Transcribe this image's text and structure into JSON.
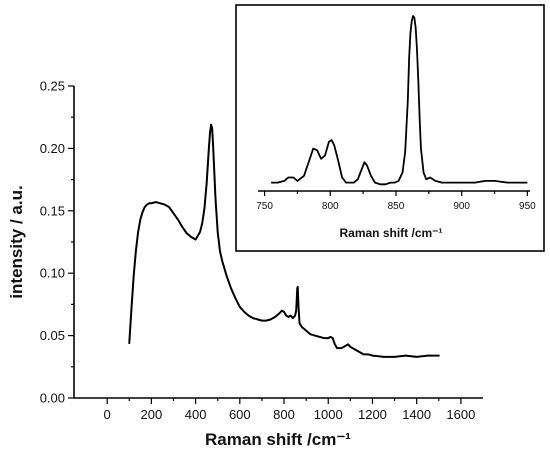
{
  "chart_data": [
    {
      "type": "line",
      "xlabel": "Raman shift /cm⁻¹",
      "ylabel": "intensity / a.u.",
      "xlim": [
        -150,
        1700
      ],
      "ylim": [
        0.0,
        0.25
      ],
      "x_ticks": [
        0,
        200,
        400,
        600,
        800,
        1000,
        1200,
        1400,
        1600
      ],
      "y_ticks": [
        0.0,
        0.05,
        0.1,
        0.15,
        0.2,
        0.25
      ],
      "x_tick_labels": [
        "0",
        "200",
        "400",
        "600",
        "800",
        "1000",
        "1200",
        "1400",
        "1600"
      ],
      "y_tick_labels": [
        "0.00",
        "0.05",
        "0.10",
        "0.15",
        "0.20",
        "0.25"
      ],
      "grid": false,
      "series": [
        {
          "x": [
            100,
            110,
            120,
            130,
            140,
            150,
            160,
            170,
            180,
            190,
            200,
            220,
            240,
            260,
            280,
            300,
            320,
            340,
            360,
            380,
            400,
            420,
            430,
            440,
            450,
            460,
            465,
            470,
            475,
            480,
            490,
            500,
            510,
            520,
            540,
            560,
            580,
            600,
            620,
            640,
            660,
            680,
            700,
            720,
            740,
            760,
            780,
            790,
            800,
            810,
            820,
            830,
            840,
            850,
            855,
            860,
            862,
            865,
            870,
            880,
            900,
            920,
            940,
            960,
            980,
            1000,
            1010,
            1020,
            1030,
            1040,
            1060,
            1080,
            1090,
            1100,
            1120,
            1140,
            1160,
            1180,
            1200,
            1250,
            1300,
            1350,
            1400,
            1450,
            1500
          ],
          "y": [
            0.044,
            0.072,
            0.098,
            0.118,
            0.133,
            0.143,
            0.149,
            0.153,
            0.155,
            0.156,
            0.156,
            0.157,
            0.156,
            0.155,
            0.153,
            0.148,
            0.143,
            0.137,
            0.132,
            0.129,
            0.127,
            0.133,
            0.14,
            0.152,
            0.172,
            0.2,
            0.212,
            0.219,
            0.216,
            0.199,
            0.16,
            0.133,
            0.118,
            0.11,
            0.098,
            0.088,
            0.08,
            0.073,
            0.069,
            0.066,
            0.064,
            0.063,
            0.062,
            0.062,
            0.063,
            0.065,
            0.068,
            0.07,
            0.069,
            0.066,
            0.065,
            0.066,
            0.064,
            0.066,
            0.07,
            0.088,
            0.089,
            0.075,
            0.06,
            0.057,
            0.054,
            0.051,
            0.05,
            0.049,
            0.048,
            0.048,
            0.049,
            0.048,
            0.043,
            0.04,
            0.04,
            0.042,
            0.043,
            0.041,
            0.039,
            0.037,
            0.035,
            0.035,
            0.034,
            0.033,
            0.033,
            0.034,
            0.033,
            0.034,
            0.034
          ]
        }
      ]
    },
    {
      "type": "line",
      "xlabel": "Raman shift /cm⁻¹",
      "ylabel": "",
      "xlim": [
        745,
        952
      ],
      "ylim": [
        0.0,
        1.0
      ],
      "x_ticks": [
        750,
        800,
        850,
        900,
        950
      ],
      "x_tick_labels": [
        "750",
        "800",
        "850",
        "900",
        "950"
      ],
      "grid": false,
      "series": [
        {
          "x": [
            755,
            760,
            765,
            768,
            772,
            775,
            780,
            784,
            787,
            790,
            793,
            796,
            799,
            801,
            803,
            806,
            809,
            812,
            815,
            818,
            821,
            824,
            826,
            828,
            831,
            834,
            838,
            842,
            846,
            849,
            852,
            855,
            857,
            859,
            860,
            861,
            862,
            863,
            864,
            865,
            866,
            867,
            868,
            869,
            871,
            873,
            876,
            880,
            885,
            890,
            900,
            910,
            918,
            925,
            935,
            945,
            950
          ],
          "y": [
            0.02,
            0.02,
            0.03,
            0.05,
            0.05,
            0.03,
            0.06,
            0.15,
            0.22,
            0.21,
            0.16,
            0.18,
            0.26,
            0.27,
            0.24,
            0.15,
            0.05,
            0.02,
            0.02,
            0.02,
            0.04,
            0.1,
            0.14,
            0.12,
            0.06,
            0.02,
            0.01,
            0.01,
            0.02,
            0.02,
            0.03,
            0.08,
            0.2,
            0.5,
            0.75,
            0.9,
            0.97,
            1.0,
            0.99,
            0.93,
            0.8,
            0.62,
            0.4,
            0.22,
            0.08,
            0.04,
            0.05,
            0.03,
            0.02,
            0.02,
            0.02,
            0.02,
            0.03,
            0.03,
            0.02,
            0.02,
            0.02
          ]
        }
      ]
    }
  ]
}
